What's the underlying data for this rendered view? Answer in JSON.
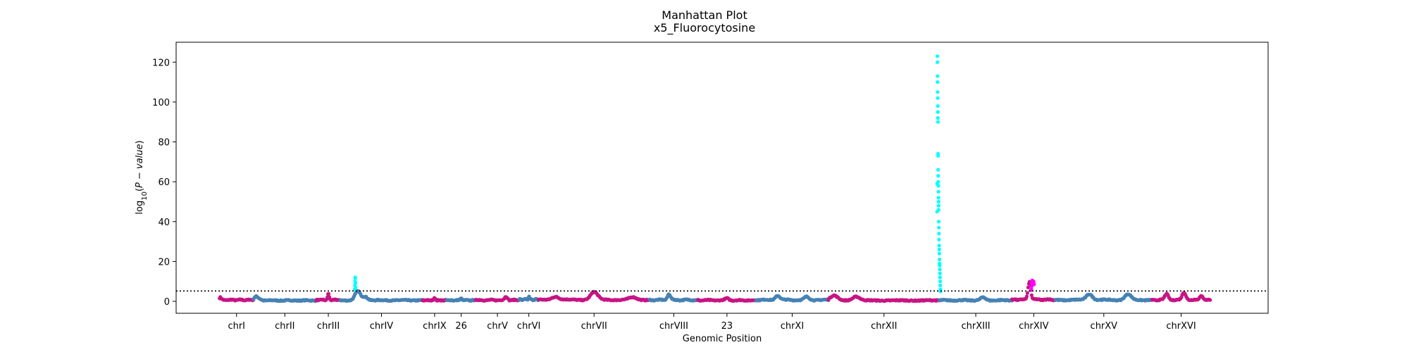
{
  "chart_data": {
    "type": "scatter",
    "title": "Manhattan Plot",
    "subtitle": "x5_Fluorocytosine",
    "xlabel": "Genomic Position",
    "ylabel_parts": {
      "prefix": "log",
      "sub": "10",
      "mid": "(",
      "italic": "P − value",
      "suffix": ")"
    },
    "ylim": [
      -6,
      130
    ],
    "yticks": [
      0,
      20,
      40,
      60,
      80,
      100,
      120
    ],
    "threshold": 5.2,
    "grid": false,
    "legend": "none",
    "colors": {
      "a": "#c71585",
      "b": "#4682b4",
      "sig": "#00ffff",
      "sig2": "#ff00ff",
      "threshold": "#000000"
    },
    "chromosomes": [
      {
        "label": "chrI",
        "range": [
          0.0,
          0.07
        ],
        "color": "a",
        "base": 0.8,
        "bumps": [
          [
            0.02,
            1.2
          ]
        ]
      },
      {
        "label": "chrII",
        "range": [
          0.07,
          0.2
        ],
        "color": "b",
        "base": 0.5,
        "bumps": [
          [
            0.04,
            1.8
          ],
          [
            0.1,
            0.6
          ]
        ]
      },
      {
        "label": "chrIII",
        "range": [
          0.2,
          0.25
        ],
        "color": "a",
        "base": 0.8,
        "bumps": [
          [
            0.5,
            3.0
          ]
        ]
      },
      {
        "label": "chrIV",
        "range": [
          0.25,
          0.42
        ],
        "color": "b",
        "base": 0.6,
        "bumps": [
          [
            0.21,
            4.5
          ],
          [
            0.3,
            1.8
          ]
        ]
      },
      {
        "label": "chrIX",
        "range": [
          0.42,
          0.47
        ],
        "color": "a",
        "base": 0.6,
        "bumps": [
          [
            0.5,
            1.3
          ]
        ]
      },
      {
        "label": "26",
        "range": [
          0.47,
          0.53
        ],
        "color": "b",
        "base": 0.6,
        "bumps": [
          [
            0.5,
            1.0
          ]
        ]
      },
      {
        "label": "chrV",
        "range": [
          0.53,
          0.62
        ],
        "color": "a",
        "base": 0.7,
        "bumps": [
          [
            0.7,
            1.8
          ]
        ]
      },
      {
        "label": "chrVI",
        "range": [
          0.62,
          0.66
        ],
        "color": "b",
        "base": 1.0,
        "bumps": [
          [
            0.5,
            1.5
          ]
        ]
      },
      {
        "label": "chrVII",
        "range": [
          0.66,
          0.89
        ],
        "color": "a",
        "base": 0.9,
        "bumps": [
          [
            0.5,
            3.8
          ],
          [
            0.15,
            1.6
          ],
          [
            0.85,
            1.2
          ]
        ]
      },
      {
        "label": "chrVIII",
        "range": [
          0.89,
          0.99
        ],
        "color": "b",
        "base": 0.8,
        "bumps": [
          [
            0.4,
            3.0
          ]
        ]
      },
      {
        "label": "23",
        "range": [
          0.99,
          1.11
        ],
        "color": "a",
        "base": 0.6,
        "bumps": [
          [
            0.5,
            1.0
          ]
        ]
      },
      {
        "label": "chrXI",
        "range": [
          1.11,
          1.26
        ],
        "color": "b",
        "base": 0.8,
        "bumps": [
          [
            0.3,
            2.2
          ],
          [
            0.7,
            1.5
          ]
        ]
      },
      {
        "label": "chrXII",
        "range": [
          1.26,
          1.49
        ],
        "color": "a",
        "base": 0.5,
        "bumps": [
          [
            0.05,
            2.5
          ],
          [
            0.25,
            2.0
          ]
        ]
      },
      {
        "label": "chrXIII",
        "range": [
          1.49,
          1.64
        ],
        "color": "b",
        "base": 0.6,
        "bumps": [
          [
            0.6,
            1.5
          ]
        ]
      },
      {
        "label": "chrXIV",
        "range": [
          1.64,
          1.73
        ],
        "color": "a",
        "base": 1.0,
        "bumps": [
          [
            0.4,
            9.0
          ]
        ]
      },
      {
        "label": "chrXV",
        "range": [
          1.73,
          1.93
        ],
        "color": "b",
        "base": 0.8,
        "bumps": [
          [
            0.35,
            3.0
          ],
          [
            0.75,
            2.8
          ]
        ]
      },
      {
        "label": "chrXVI",
        "range": [
          1.93,
          2.05
        ],
        "color": "a",
        "base": 0.8,
        "bumps": [
          [
            0.25,
            3.0
          ],
          [
            0.55,
            3.8
          ],
          [
            0.85,
            2.0
          ]
        ]
      }
    ],
    "xlim": [
      -0.09,
      2.17
    ],
    "peaks": [
      {
        "chrom": "chrIV",
        "color": "sig",
        "points": [
          [
            0.2797,
            6
          ],
          [
            0.28,
            8
          ],
          [
            0.2803,
            10
          ],
          [
            0.2805,
            11.5
          ],
          [
            0.2807,
            12
          ],
          [
            0.281,
            9
          ],
          [
            0.2812,
            7
          ]
        ]
      },
      {
        "chrom": "chrXII",
        "color": "sig",
        "points": [
          [
            1.4855,
            123
          ],
          [
            1.4856,
            120
          ],
          [
            1.4858,
            113
          ],
          [
            1.4859,
            110
          ],
          [
            1.486,
            105
          ],
          [
            1.4862,
            102
          ],
          [
            1.4863,
            98
          ],
          [
            1.4865,
            95
          ],
          [
            1.4866,
            92
          ],
          [
            1.4868,
            90
          ],
          [
            1.4869,
            74
          ],
          [
            1.487,
            73
          ],
          [
            1.4872,
            66
          ],
          [
            1.4873,
            63
          ],
          [
            1.4874,
            60
          ],
          [
            1.4876,
            58
          ],
          [
            1.4877,
            55
          ],
          [
            1.4878,
            52
          ],
          [
            1.488,
            50
          ],
          [
            1.4881,
            48
          ],
          [
            1.4882,
            46
          ],
          [
            1.485,
            59
          ],
          [
            1.4848,
            45
          ],
          [
            1.4884,
            40
          ],
          [
            1.4886,
            37
          ],
          [
            1.4888,
            34
          ],
          [
            1.489,
            31
          ],
          [
            1.4892,
            28
          ],
          [
            1.4894,
            26
          ],
          [
            1.4896,
            24
          ],
          [
            1.4898,
            21
          ],
          [
            1.49,
            19
          ],
          [
            1.4902,
            18
          ],
          [
            1.4905,
            16
          ],
          [
            1.4908,
            14
          ],
          [
            1.491,
            12
          ],
          [
            1.4912,
            10
          ],
          [
            1.4915,
            8
          ],
          [
            1.4918,
            6
          ],
          [
            1.492,
            5
          ]
        ]
      },
      {
        "chrom": "chrXIV",
        "color": "sig2",
        "points": [
          [
            1.68,
            6
          ],
          [
            1.6805,
            7.5
          ],
          [
            1.681,
            9
          ],
          [
            1.6815,
            10
          ],
          [
            1.682,
            10.5
          ],
          [
            1.6825,
            10
          ],
          [
            1.683,
            9.5
          ],
          [
            1.6835,
            9
          ],
          [
            1.684,
            9.5
          ],
          [
            1.6845,
            10
          ],
          [
            1.685,
            9
          ],
          [
            1.6855,
            8.5
          ]
        ]
      }
    ]
  }
}
